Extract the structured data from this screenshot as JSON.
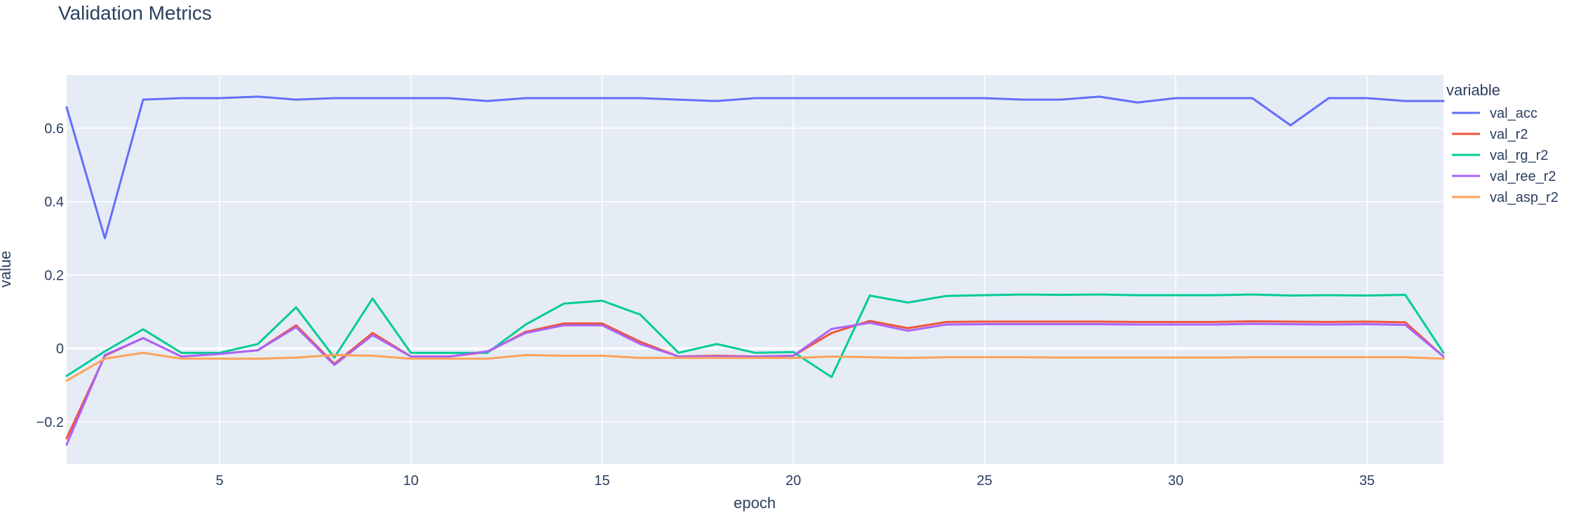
{
  "chart_data": {
    "type": "line",
    "title": "Validation Metrics",
    "xlabel": "epoch",
    "ylabel": "value",
    "xlim": [
      1,
      37
    ],
    "ylim": [
      -0.315,
      0.745
    ],
    "x_ticks": [
      5,
      10,
      15,
      20,
      25,
      30,
      35
    ],
    "y_ticks": [
      -0.2,
      0,
      0.2,
      0.4,
      0.6
    ],
    "y_tick_labels": [
      "−0.2",
      "0",
      "0.2",
      "0.4",
      "0.6"
    ],
    "grid": true,
    "legend_title": "variable",
    "legend_position": "right",
    "x": [
      1,
      2,
      3,
      4,
      5,
      6,
      7,
      8,
      9,
      10,
      11,
      12,
      13,
      14,
      15,
      16,
      17,
      18,
      19,
      20,
      21,
      22,
      23,
      24,
      25,
      26,
      27,
      28,
      29,
      30,
      31,
      32,
      33,
      34,
      35,
      36,
      37
    ],
    "series": [
      {
        "name": "val_acc",
        "color": "#636efa",
        "values": [
          0.657,
          0.3,
          0.678,
          0.682,
          0.682,
          0.686,
          0.678,
          0.682,
          0.682,
          0.682,
          0.682,
          0.674,
          0.682,
          0.682,
          0.682,
          0.682,
          0.678,
          0.674,
          0.682,
          0.682,
          0.682,
          0.682,
          0.682,
          0.682,
          0.682,
          0.678,
          0.678,
          0.686,
          0.67,
          0.682,
          0.682,
          0.682,
          0.608,
          0.682,
          0.682,
          0.674,
          0.674
        ]
      },
      {
        "name": "val_r2",
        "color": "#ef553b",
        "values": [
          -0.245,
          -0.02,
          0.028,
          -0.022,
          -0.015,
          -0.005,
          0.063,
          -0.042,
          0.042,
          -0.022,
          -0.022,
          -0.01,
          0.045,
          0.068,
          0.068,
          0.018,
          -0.022,
          -0.02,
          -0.022,
          -0.02,
          0.042,
          0.075,
          0.055,
          0.072,
          0.073,
          0.073,
          0.073,
          0.073,
          0.072,
          0.072,
          0.072,
          0.074,
          0.073,
          0.072,
          0.073,
          0.071,
          -0.022
        ]
      },
      {
        "name": "val_rg_r2",
        "color": "#00cc96",
        "values": [
          -0.075,
          -0.008,
          0.052,
          -0.012,
          -0.012,
          0.012,
          0.112,
          -0.025,
          0.136,
          -0.012,
          -0.012,
          -0.012,
          0.065,
          0.122,
          0.13,
          0.092,
          -0.012,
          0.012,
          -0.012,
          -0.01,
          -0.078,
          0.144,
          0.125,
          0.143,
          0.145,
          0.147,
          0.146,
          0.147,
          0.145,
          0.145,
          0.145,
          0.147,
          0.144,
          0.145,
          0.144,
          0.146,
          -0.012
        ]
      },
      {
        "name": "val_ree_r2",
        "color": "#ab63fa",
        "values": [
          -0.262,
          -0.018,
          0.028,
          -0.022,
          -0.015,
          -0.005,
          0.058,
          -0.045,
          0.036,
          -0.022,
          -0.022,
          -0.008,
          0.042,
          0.063,
          0.063,
          0.012,
          -0.022,
          -0.022,
          -0.022,
          -0.02,
          0.053,
          0.07,
          0.048,
          0.065,
          0.066,
          0.066,
          0.066,
          0.066,
          0.065,
          0.065,
          0.065,
          0.067,
          0.066,
          0.065,
          0.066,
          0.064,
          -0.022
        ]
      },
      {
        "name": "val_asp_r2",
        "color": "#ffa15a",
        "values": [
          -0.088,
          -0.028,
          -0.012,
          -0.028,
          -0.028,
          -0.028,
          -0.025,
          -0.018,
          -0.02,
          -0.028,
          -0.028,
          -0.028,
          -0.018,
          -0.02,
          -0.02,
          -0.026,
          -0.026,
          -0.026,
          -0.026,
          -0.026,
          -0.022,
          -0.024,
          -0.026,
          -0.024,
          -0.024,
          -0.024,
          -0.025,
          -0.025,
          -0.025,
          -0.025,
          -0.025,
          -0.024,
          -0.024,
          -0.024,
          -0.024,
          -0.024,
          -0.028
        ]
      }
    ]
  }
}
